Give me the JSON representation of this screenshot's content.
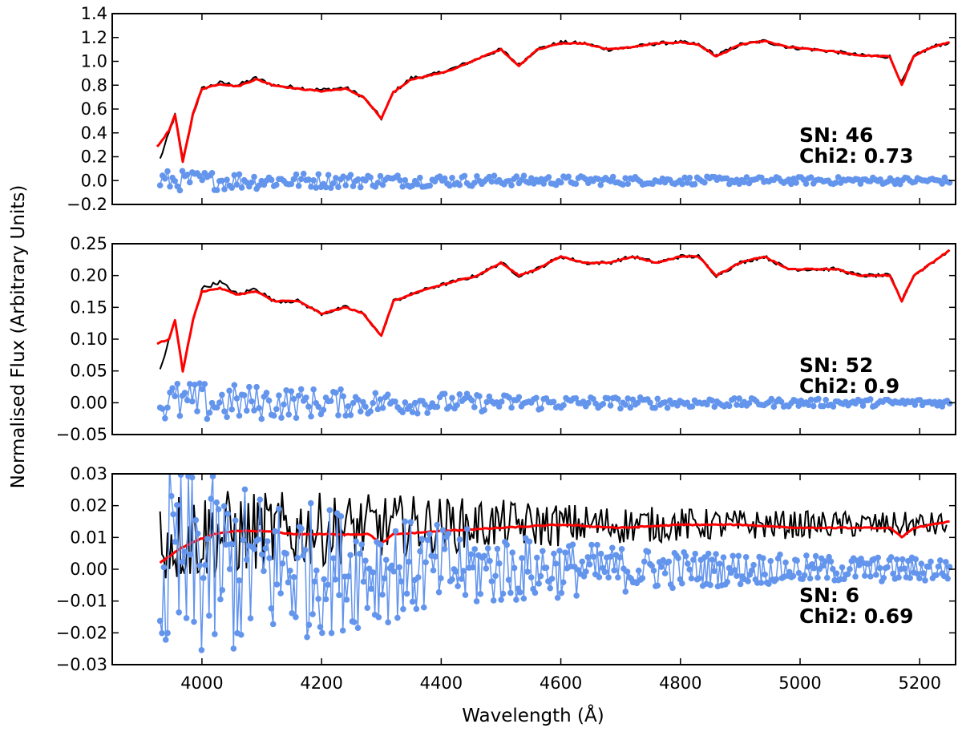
{
  "figure": {
    "xlabel": "Wavelength (Å)",
    "ylabel": "Normalised Flux (Arbitrary Units)"
  },
  "colors": {
    "observed": "#000000",
    "model": "#ff0000",
    "residual": "#6495ed"
  },
  "chart_data": [
    {
      "type": "line",
      "panel": "top",
      "xlim": [
        3850,
        5260
      ],
      "ylim": [
        -0.2,
        1.4
      ],
      "xticks": [
        4000,
        4200,
        4400,
        4600,
        4800,
        5000,
        5200
      ],
      "xtick_labels": [],
      "yticks": [
        -0.2,
        0.0,
        0.2,
        0.4,
        0.6,
        0.8,
        1.0,
        1.2,
        1.4
      ],
      "ytick_labels": [
        "−0.2",
        "0.0",
        "0.2",
        "0.4",
        "0.6",
        "0.8",
        "1.0",
        "1.2",
        "1.4"
      ],
      "annotations": [
        "SN: 46",
        "Chi2: 0.73"
      ],
      "series": [
        {
          "style": "observed",
          "points": [
            [
              3930,
              0.18
            ],
            [
              3945,
              0.4
            ],
            [
              3955,
              0.55
            ],
            [
              3968,
              0.18
            ],
            [
              3985,
              0.55
            ],
            [
              4000,
              0.77
            ],
            [
              4030,
              0.82
            ],
            [
              4060,
              0.8
            ],
            [
              4090,
              0.86
            ],
            [
              4120,
              0.8
            ],
            [
              4160,
              0.78
            ],
            [
              4200,
              0.76
            ],
            [
              4240,
              0.78
            ],
            [
              4270,
              0.7
            ],
            [
              4300,
              0.52
            ],
            [
              4320,
              0.74
            ],
            [
              4350,
              0.86
            ],
            [
              4380,
              0.88
            ],
            [
              4420,
              0.94
            ],
            [
              4460,
              1.02
            ],
            [
              4500,
              1.1
            ],
            [
              4530,
              0.97
            ],
            [
              4560,
              1.1
            ],
            [
              4600,
              1.16
            ],
            [
              4640,
              1.15
            ],
            [
              4680,
              1.1
            ],
            [
              4720,
              1.12
            ],
            [
              4760,
              1.15
            ],
            [
              4800,
              1.16
            ],
            [
              4830,
              1.14
            ],
            [
              4860,
              1.05
            ],
            [
              4900,
              1.14
            ],
            [
              4940,
              1.17
            ],
            [
              4980,
              1.12
            ],
            [
              5020,
              1.1
            ],
            [
              5060,
              1.08
            ],
            [
              5100,
              1.05
            ],
            [
              5150,
              1.04
            ],
            [
              5170,
              0.82
            ],
            [
              5190,
              1.04
            ],
            [
              5220,
              1.12
            ],
            [
              5250,
              1.16
            ]
          ]
        },
        {
          "style": "model",
          "points": [
            [
              3925,
              0.28
            ],
            [
              3945,
              0.42
            ],
            [
              3955,
              0.55
            ],
            [
              3968,
              0.16
            ],
            [
              3985,
              0.56
            ],
            [
              4000,
              0.77
            ],
            [
              4030,
              0.81
            ],
            [
              4060,
              0.79
            ],
            [
              4090,
              0.85
            ],
            [
              4120,
              0.8
            ],
            [
              4160,
              0.77
            ],
            [
              4200,
              0.75
            ],
            [
              4240,
              0.77
            ],
            [
              4270,
              0.7
            ],
            [
              4300,
              0.52
            ],
            [
              4320,
              0.74
            ],
            [
              4350,
              0.85
            ],
            [
              4380,
              0.88
            ],
            [
              4420,
              0.93
            ],
            [
              4460,
              1.02
            ],
            [
              4500,
              1.1
            ],
            [
              4530,
              0.96
            ],
            [
              4560,
              1.1
            ],
            [
              4600,
              1.15
            ],
            [
              4640,
              1.15
            ],
            [
              4680,
              1.1
            ],
            [
              4720,
              1.12
            ],
            [
              4760,
              1.15
            ],
            [
              4800,
              1.16
            ],
            [
              4830,
              1.14
            ],
            [
              4860,
              1.04
            ],
            [
              4900,
              1.14
            ],
            [
              4940,
              1.17
            ],
            [
              4980,
              1.12
            ],
            [
              5020,
              1.1
            ],
            [
              5060,
              1.08
            ],
            [
              5100,
              1.05
            ],
            [
              5150,
              1.04
            ],
            [
              5170,
              0.8
            ],
            [
              5190,
              1.04
            ],
            [
              5220,
              1.12
            ],
            [
              5250,
              1.16
            ]
          ]
        },
        {
          "style": "residual",
          "scatter": true,
          "xrange": [
            3930,
            5250
          ],
          "amp_start": 0.06,
          "amp_end": 0.03,
          "offset": 0.0,
          "count": 320
        }
      ]
    },
    {
      "type": "line",
      "panel": "middle",
      "xlim": [
        3850,
        5260
      ],
      "ylim": [
        -0.05,
        0.25
      ],
      "xticks": [
        4000,
        4200,
        4400,
        4600,
        4800,
        5000,
        5200
      ],
      "xtick_labels": [],
      "yticks": [
        -0.05,
        0.0,
        0.05,
        0.1,
        0.15,
        0.2,
        0.25
      ],
      "ytick_labels": [
        "−0.05",
        "0.00",
        "0.05",
        "0.10",
        "0.15",
        "0.20",
        "0.25"
      ],
      "annotations": [
        "SN: 52",
        "Chi2: 0.9"
      ],
      "series": [
        {
          "style": "observed",
          "points": [
            [
              3930,
              0.05
            ],
            [
              3945,
              0.1
            ],
            [
              3955,
              0.13
            ],
            [
              3968,
              0.05
            ],
            [
              3985,
              0.13
            ],
            [
              4000,
              0.18
            ],
            [
              4030,
              0.19
            ],
            [
              4060,
              0.17
            ],
            [
              4090,
              0.18
            ],
            [
              4120,
              0.16
            ],
            [
              4160,
              0.16
            ],
            [
              4200,
              0.14
            ],
            [
              4240,
              0.15
            ],
            [
              4270,
              0.14
            ],
            [
              4300,
              0.105
            ],
            [
              4320,
              0.16
            ],
            [
              4350,
              0.17
            ],
            [
              4380,
              0.18
            ],
            [
              4420,
              0.19
            ],
            [
              4460,
              0.2
            ],
            [
              4500,
              0.22
            ],
            [
              4530,
              0.2
            ],
            [
              4560,
              0.21
            ],
            [
              4600,
              0.23
            ],
            [
              4640,
              0.22
            ],
            [
              4680,
              0.22
            ],
            [
              4720,
              0.23
            ],
            [
              4760,
              0.22
            ],
            [
              4800,
              0.23
            ],
            [
              4830,
              0.23
            ],
            [
              4860,
              0.2
            ],
            [
              4900,
              0.22
            ],
            [
              4940,
              0.23
            ],
            [
              4980,
              0.21
            ],
            [
              5020,
              0.21
            ],
            [
              5060,
              0.21
            ],
            [
              5100,
              0.2
            ],
            [
              5150,
              0.2
            ],
            [
              5170,
              0.16
            ],
            [
              5190,
              0.2
            ],
            [
              5220,
              0.22
            ],
            [
              5250,
              0.24
            ]
          ]
        },
        {
          "style": "model",
          "points": [
            [
              3925,
              0.093
            ],
            [
              3945,
              0.1
            ],
            [
              3955,
              0.13
            ],
            [
              3968,
              0.05
            ],
            [
              3985,
              0.13
            ],
            [
              4000,
              0.175
            ],
            [
              4030,
              0.18
            ],
            [
              4060,
              0.17
            ],
            [
              4090,
              0.175
            ],
            [
              4120,
              0.16
            ],
            [
              4160,
              0.16
            ],
            [
              4200,
              0.14
            ],
            [
              4240,
              0.15
            ],
            [
              4270,
              0.14
            ],
            [
              4300,
              0.105
            ],
            [
              4320,
              0.16
            ],
            [
              4350,
              0.17
            ],
            [
              4380,
              0.18
            ],
            [
              4420,
              0.19
            ],
            [
              4460,
              0.2
            ],
            [
              4500,
              0.22
            ],
            [
              4530,
              0.2
            ],
            [
              4560,
              0.21
            ],
            [
              4600,
              0.23
            ],
            [
              4640,
              0.22
            ],
            [
              4680,
              0.22
            ],
            [
              4720,
              0.23
            ],
            [
              4760,
              0.22
            ],
            [
              4800,
              0.23
            ],
            [
              4830,
              0.23
            ],
            [
              4860,
              0.2
            ],
            [
              4900,
              0.22
            ],
            [
              4940,
              0.23
            ],
            [
              4980,
              0.21
            ],
            [
              5020,
              0.21
            ],
            [
              5060,
              0.21
            ],
            [
              5100,
              0.2
            ],
            [
              5150,
              0.2
            ],
            [
              5170,
              0.16
            ],
            [
              5190,
              0.2
            ],
            [
              5220,
              0.22
            ],
            [
              5250,
              0.24
            ]
          ]
        },
        {
          "style": "residual",
          "scatter": true,
          "xrange": [
            3930,
            5250
          ],
          "amp_start": 0.03,
          "amp_end": 0.006,
          "offset": 0.0,
          "count": 320
        }
      ]
    },
    {
      "type": "line",
      "panel": "bottom",
      "xlim": [
        3850,
        5260
      ],
      "ylim": [
        -0.03,
        0.03
      ],
      "xticks": [
        4000,
        4200,
        4400,
        4600,
        4800,
        5000,
        5200
      ],
      "xtick_labels": [
        "4000",
        "4200",
        "4400",
        "4600",
        "4800",
        "5000",
        "5200"
      ],
      "yticks": [
        -0.03,
        -0.02,
        -0.01,
        0.0,
        0.01,
        0.02,
        0.03
      ],
      "ytick_labels": [
        "−0.03",
        "−0.02",
        "−0.01",
        "0.00",
        "0.01",
        "0.02",
        "0.03"
      ],
      "annotations": [
        "SN: 6",
        "Chi2: 0.69"
      ],
      "series": [
        {
          "style": "observed",
          "noisy": true,
          "xrange": [
            3930,
            5245
          ],
          "base_start": 0.01,
          "base_end": 0.014,
          "amp_start": 0.012,
          "amp_end": 0.004,
          "count": 420
        },
        {
          "style": "model",
          "points": [
            [
              3930,
              0.002
            ],
            [
              3960,
              0.006
            ],
            [
              3990,
              0.009
            ],
            [
              4020,
              0.011
            ],
            [
              4060,
              0.012
            ],
            [
              4100,
              0.012
            ],
            [
              4160,
              0.011
            ],
            [
              4220,
              0.011
            ],
            [
              4280,
              0.011
            ],
            [
              4300,
              0.008
            ],
            [
              4320,
              0.011
            ],
            [
              4400,
              0.012
            ],
            [
              4500,
              0.013
            ],
            [
              4600,
              0.014
            ],
            [
              4700,
              0.013
            ],
            [
              4800,
              0.014
            ],
            [
              4900,
              0.014
            ],
            [
              5000,
              0.013
            ],
            [
              5100,
              0.013
            ],
            [
              5150,
              0.013
            ],
            [
              5170,
              0.01
            ],
            [
              5190,
              0.013
            ],
            [
              5250,
              0.015
            ]
          ]
        },
        {
          "style": "residual",
          "scatter": true,
          "xrange": [
            3930,
            5250
          ],
          "amp_start": 0.03,
          "amp_end": 0.004,
          "offset": 0.0,
          "count": 420
        }
      ]
    }
  ]
}
